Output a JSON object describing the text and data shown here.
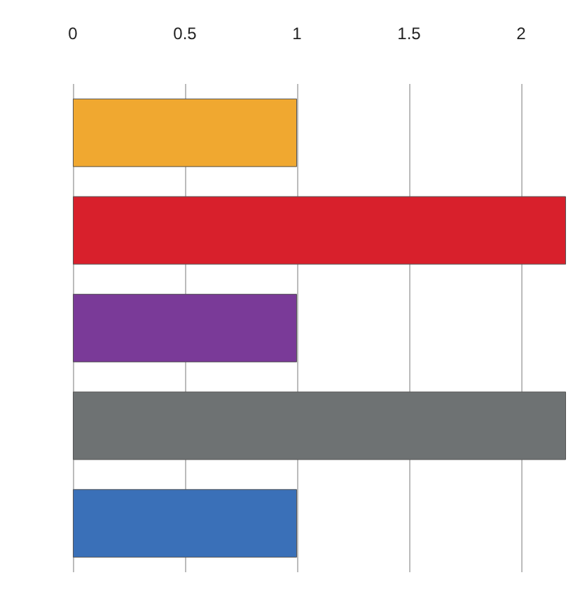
{
  "chart_data": {
    "type": "bar",
    "orientation": "horizontal",
    "categories": [
      null,
      null,
      null,
      null,
      null
    ],
    "values": [
      1,
      2.2,
      1,
      2.2,
      1
    ],
    "colors": [
      "#f0a830",
      "#d8202c",
      "#7a3a98",
      "#6e7273",
      "#3a70b8"
    ],
    "xlim": [
      0,
      2.2
    ],
    "xticks": [
      0,
      0.5,
      1,
      1.5,
      2
    ],
    "grid": "x"
  }
}
